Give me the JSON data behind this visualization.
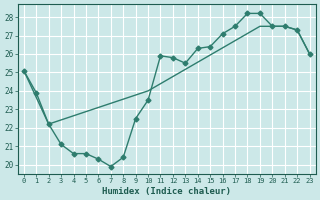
{
  "xlabel": "Humidex (Indice chaleur)",
  "background_color": "#cce8e8",
  "grid_color": "#ffffff",
  "line_color": "#2e7d6e",
  "xlim": [
    -0.5,
    23.5
  ],
  "ylim": [
    19.5,
    28.7
  ],
  "xticks": [
    0,
    1,
    2,
    3,
    4,
    5,
    6,
    7,
    8,
    9,
    10,
    11,
    12,
    13,
    14,
    15,
    16,
    17,
    18,
    19,
    20,
    21,
    22,
    23
  ],
  "yticks": [
    20,
    21,
    22,
    23,
    24,
    25,
    26,
    27,
    28
  ],
  "line1_x": [
    0,
    1,
    2,
    3,
    4,
    5,
    6,
    7,
    8,
    9,
    10,
    11,
    12,
    13,
    14,
    15,
    16,
    17,
    18,
    19,
    20,
    21,
    22,
    23
  ],
  "line1_y": [
    25.1,
    23.9,
    22.2,
    21.1,
    20.6,
    20.6,
    20.3,
    19.9,
    20.4,
    22.5,
    23.5,
    25.9,
    25.8,
    25.5,
    26.3,
    26.4,
    27.1,
    27.5,
    28.2,
    28.2,
    27.5,
    27.5,
    27.3,
    26.0
  ],
  "line2_x": [
    0,
    2,
    10,
    19,
    20,
    21,
    22,
    23
  ],
  "line2_y": [
    25.1,
    22.2,
    24.0,
    27.5,
    27.5,
    27.5,
    27.3,
    26.0
  ]
}
